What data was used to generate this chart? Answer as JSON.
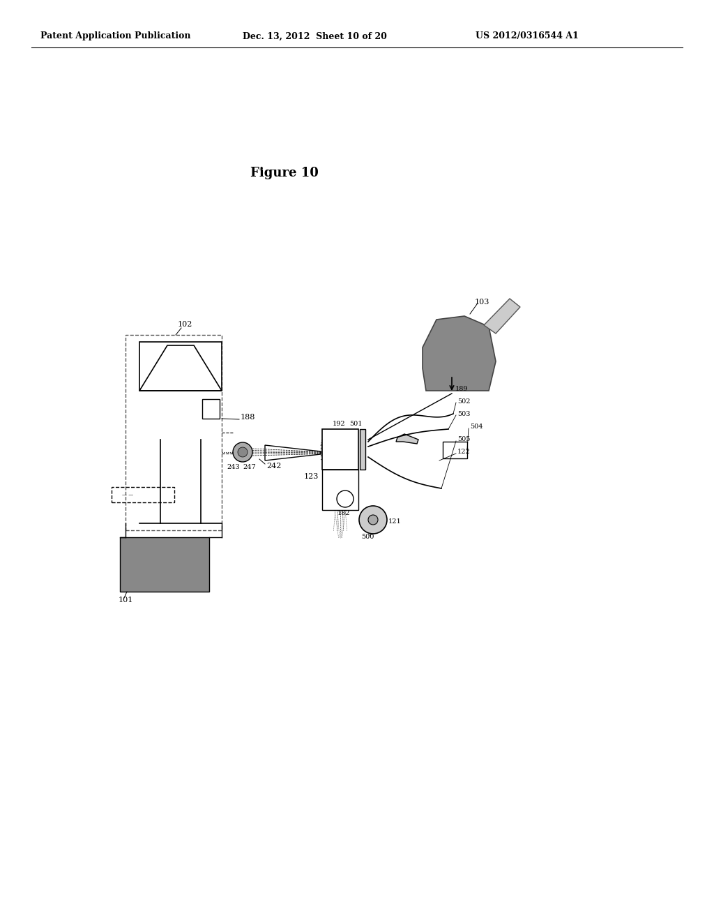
{
  "bg_color": "#ffffff",
  "header_left": "Patent Application Publication",
  "header_center": "Dec. 13, 2012  Sheet 10 of 20",
  "header_right": "US 2012/0316544 A1",
  "figure_title": "Figure 10",
  "gray_dark": "#888888",
  "gray_mid": "#aaaaaa",
  "gray_light": "#cccccc",
  "lfs": 8
}
